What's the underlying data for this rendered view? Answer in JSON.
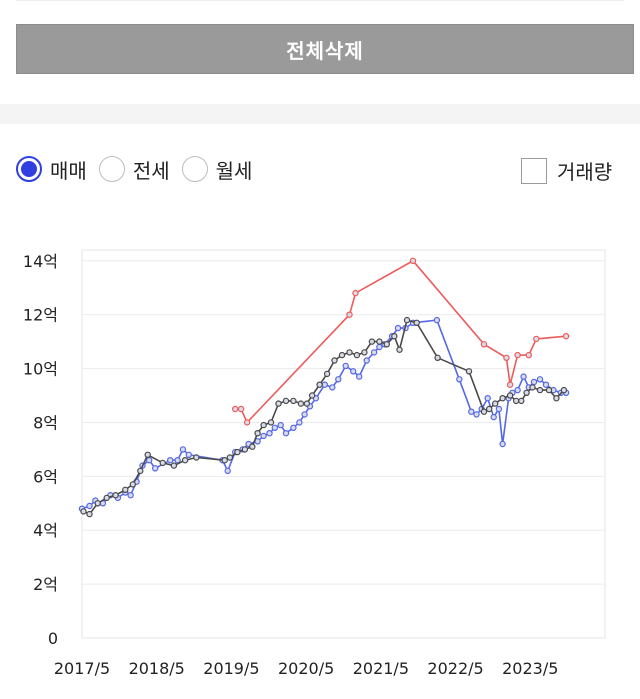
{
  "toolbar": {
    "delete_all_label": "전체삭제"
  },
  "filters": {
    "radios": [
      {
        "label": "매매",
        "selected": true
      },
      {
        "label": "전세",
        "selected": false
      },
      {
        "label": "월세",
        "selected": false
      }
    ],
    "volume_checkbox": {
      "label": "거래량",
      "checked": false
    }
  },
  "colors": {
    "series_blue": "#5468e8",
    "series_gray": "#4a4a4a",
    "series_red": "#ef5a5a",
    "radio_accent": "#2f3fe0"
  },
  "chart_data": {
    "type": "line",
    "y_tick_labels": [
      "0",
      "2억",
      "4억",
      "6억",
      "8억",
      "10억",
      "12억",
      "14억"
    ],
    "y_ticks": [
      0,
      2,
      4,
      6,
      8,
      10,
      12,
      14
    ],
    "ylim": [
      0,
      14.4
    ],
    "x_tick_labels": [
      "2017/5",
      "2018/5",
      "2019/5",
      "2020/5",
      "2021/5",
      "2022/5",
      "2023/5"
    ],
    "x_ticks": [
      2017.37,
      2018.37,
      2019.37,
      2020.37,
      2021.37,
      2022.37,
      2023.37
    ],
    "xlim": [
      2017.37,
      2024.37
    ],
    "grid": true,
    "series": [
      {
        "color": "#5468e8",
        "points": [
          [
            2017.37,
            4.8
          ],
          [
            2017.47,
            4.9
          ],
          [
            2017.55,
            5.1
          ],
          [
            2017.65,
            5.0
          ],
          [
            2017.75,
            5.3
          ],
          [
            2017.85,
            5.2
          ],
          [
            2017.95,
            5.4
          ],
          [
            2018.02,
            5.3
          ],
          [
            2018.1,
            5.8
          ],
          [
            2018.18,
            6.4
          ],
          [
            2018.27,
            6.6
          ],
          [
            2018.35,
            6.3
          ],
          [
            2018.55,
            6.6
          ],
          [
            2018.65,
            6.6
          ],
          [
            2018.72,
            7.0
          ],
          [
            2018.8,
            6.8
          ],
          [
            2019.25,
            6.6
          ],
          [
            2019.32,
            6.2
          ],
          [
            2019.42,
            6.9
          ],
          [
            2019.52,
            7.0
          ],
          [
            2019.6,
            7.2
          ],
          [
            2019.72,
            7.3
          ],
          [
            2019.8,
            7.5
          ],
          [
            2019.88,
            7.6
          ],
          [
            2019.95,
            7.8
          ],
          [
            2020.03,
            7.9
          ],
          [
            2020.1,
            7.6
          ],
          [
            2020.2,
            7.8
          ],
          [
            2020.28,
            8.0
          ],
          [
            2020.35,
            8.3
          ],
          [
            2020.42,
            8.6
          ],
          [
            2020.5,
            8.9
          ],
          [
            2020.62,
            9.4
          ],
          [
            2020.72,
            9.3
          ],
          [
            2020.8,
            9.6
          ],
          [
            2020.9,
            10.1
          ],
          [
            2021.0,
            9.9
          ],
          [
            2021.08,
            9.7
          ],
          [
            2021.18,
            10.3
          ],
          [
            2021.28,
            10.6
          ],
          [
            2021.35,
            10.8
          ],
          [
            2021.42,
            10.9
          ],
          [
            2021.52,
            11.2
          ],
          [
            2021.6,
            11.5
          ],
          [
            2021.7,
            11.5
          ],
          [
            2021.8,
            11.7
          ],
          [
            2022.12,
            11.8
          ],
          [
            2022.42,
            9.6
          ],
          [
            2022.58,
            8.4
          ],
          [
            2022.65,
            8.3
          ],
          [
            2022.72,
            8.5
          ],
          [
            2022.8,
            8.9
          ],
          [
            2022.88,
            8.2
          ],
          [
            2022.95,
            8.5
          ],
          [
            2023.0,
            7.2
          ],
          [
            2023.08,
            8.9
          ],
          [
            2023.13,
            9.1
          ],
          [
            2023.2,
            9.2
          ],
          [
            2023.28,
            9.7
          ],
          [
            2023.35,
            9.3
          ],
          [
            2023.42,
            9.5
          ],
          [
            2023.5,
            9.6
          ],
          [
            2023.58,
            9.4
          ],
          [
            2023.68,
            9.2
          ],
          [
            2023.78,
            9.1
          ],
          [
            2023.85,
            9.1
          ]
        ]
      },
      {
        "color": "#4a4a4a",
        "points": [
          [
            2017.39,
            4.7
          ],
          [
            2017.47,
            4.6
          ],
          [
            2017.58,
            5.0
          ],
          [
            2017.7,
            5.2
          ],
          [
            2017.82,
            5.3
          ],
          [
            2017.95,
            5.5
          ],
          [
            2018.05,
            5.7
          ],
          [
            2018.15,
            6.2
          ],
          [
            2018.25,
            6.8
          ],
          [
            2018.45,
            6.5
          ],
          [
            2018.6,
            6.4
          ],
          [
            2018.75,
            6.6
          ],
          [
            2018.9,
            6.7
          ],
          [
            2019.28,
            6.6
          ],
          [
            2019.35,
            6.7
          ],
          [
            2019.45,
            6.9
          ],
          [
            2019.55,
            7.0
          ],
          [
            2019.65,
            7.1
          ],
          [
            2019.72,
            7.6
          ],
          [
            2019.8,
            7.9
          ],
          [
            2019.9,
            8.0
          ],
          [
            2020.0,
            8.7
          ],
          [
            2020.1,
            8.8
          ],
          [
            2020.2,
            8.8
          ],
          [
            2020.3,
            8.7
          ],
          [
            2020.38,
            8.7
          ],
          [
            2020.45,
            9.0
          ],
          [
            2020.55,
            9.4
          ],
          [
            2020.65,
            9.8
          ],
          [
            2020.75,
            10.3
          ],
          [
            2020.85,
            10.5
          ],
          [
            2020.95,
            10.6
          ],
          [
            2021.05,
            10.5
          ],
          [
            2021.15,
            10.6
          ],
          [
            2021.25,
            11.0
          ],
          [
            2021.35,
            11.0
          ],
          [
            2021.45,
            10.9
          ],
          [
            2021.55,
            11.2
          ],
          [
            2021.62,
            10.7
          ],
          [
            2021.72,
            11.8
          ],
          [
            2021.85,
            11.7
          ],
          [
            2022.13,
            10.4
          ],
          [
            2022.55,
            9.9
          ],
          [
            2022.75,
            8.4
          ],
          [
            2022.82,
            8.5
          ],
          [
            2022.9,
            8.7
          ],
          [
            2023.0,
            8.9
          ],
          [
            2023.1,
            9.0
          ],
          [
            2023.18,
            8.8
          ],
          [
            2023.25,
            8.8
          ],
          [
            2023.32,
            9.1
          ],
          [
            2023.4,
            9.3
          ],
          [
            2023.5,
            9.2
          ],
          [
            2023.62,
            9.2
          ],
          [
            2023.72,
            8.9
          ],
          [
            2023.82,
            9.2
          ]
        ]
      },
      {
        "color": "#ef5a5a",
        "points": [
          [
            2019.42,
            8.5
          ],
          [
            2019.5,
            8.5
          ],
          [
            2019.58,
            8.0
          ],
          [
            2020.95,
            12.0
          ],
          [
            2021.03,
            12.8
          ],
          [
            2021.8,
            14.0
          ],
          [
            2022.75,
            10.9
          ],
          [
            2023.05,
            10.4
          ],
          [
            2023.1,
            9.4
          ],
          [
            2023.2,
            10.5
          ],
          [
            2023.35,
            10.5
          ],
          [
            2023.45,
            11.1
          ],
          [
            2023.85,
            11.2
          ]
        ]
      }
    ]
  }
}
